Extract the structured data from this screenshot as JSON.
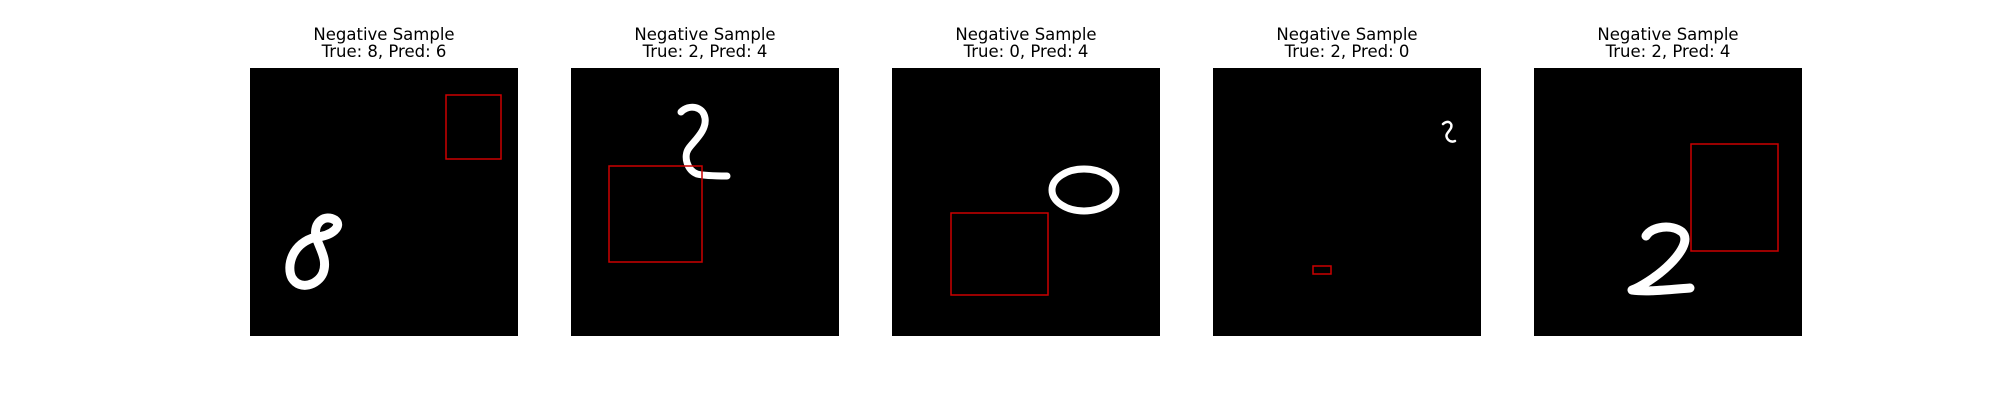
{
  "box_color": "#cc0000",
  "samples": [
    {
      "heading": "Negative Sample",
      "caption": "True: 8, Pred: 6",
      "digit_shown": "8"
    },
    {
      "heading": "Negative Sample",
      "caption": "True: 2, Pred: 4",
      "digit_shown": "2"
    },
    {
      "heading": "Negative Sample",
      "caption": "True: 0, Pred: 4",
      "digit_shown": "0"
    },
    {
      "heading": "Negative Sample",
      "caption": "True: 2, Pred: 0",
      "digit_shown": "2"
    },
    {
      "heading": "Negative Sample",
      "caption": "True: 2, Pred: 4",
      "digit_shown": "2"
    }
  ]
}
